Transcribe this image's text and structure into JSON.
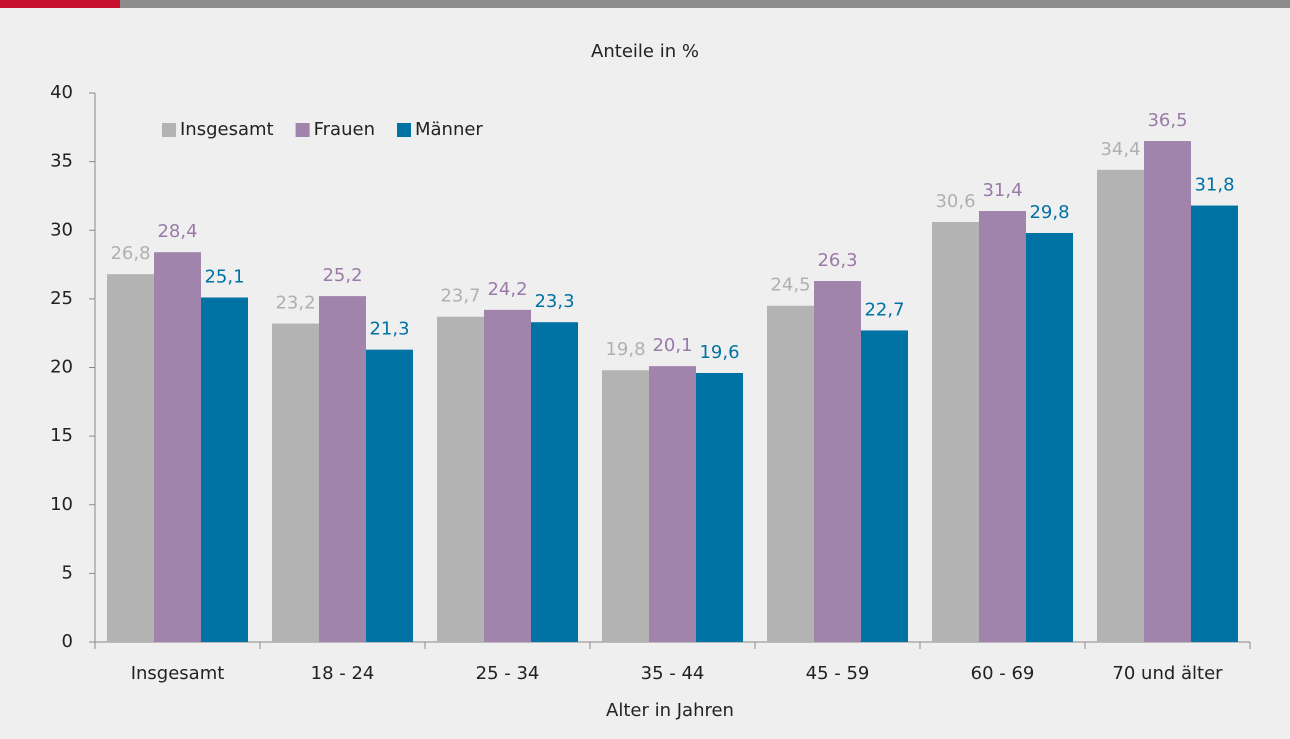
{
  "chart_data": {
    "type": "bar",
    "title": "Anteile in %",
    "x_label": "Alter in Jahren",
    "categories": [
      "Insgesamt",
      "18 - 24",
      "25 - 34",
      "35 - 44",
      "45 - 59",
      "60 - 69",
      "70 und älter"
    ],
    "series": [
      {
        "name": "Insgesamt",
        "color": "#b3b3b3",
        "label_color": "#b0b0b0",
        "values": [
          26.8,
          23.2,
          23.7,
          19.8,
          24.5,
          30.6,
          34.4
        ],
        "value_labels": [
          "26,8",
          "23,2",
          "23,7",
          "19,8",
          "24,5",
          "30,6",
          "34,4"
        ]
      },
      {
        "name": "Frauen",
        "color": "#a084ac",
        "label_color": "#9a7aa8",
        "values": [
          28.4,
          25.2,
          24.2,
          20.1,
          26.3,
          31.4,
          36.5
        ],
        "value_labels": [
          "28,4",
          "25,2",
          "24,2",
          "20,1",
          "26,3",
          "31,4",
          "36,5"
        ]
      },
      {
        "name": "Männer",
        "color": "#0072a3",
        "label_color": "#0072a3",
        "values": [
          25.1,
          21.3,
          23.3,
          19.6,
          22.7,
          29.8,
          31.8
        ],
        "value_labels": [
          "25,1",
          "21,3",
          "23,3",
          "19,6",
          "22,7",
          "29,8",
          "31,8"
        ]
      }
    ],
    "ylim": [
      0,
      40
    ],
    "yticks": [
      0,
      5,
      10,
      15,
      20,
      25,
      30,
      35,
      40
    ],
    "grid": false,
    "legend": "top-left"
  }
}
